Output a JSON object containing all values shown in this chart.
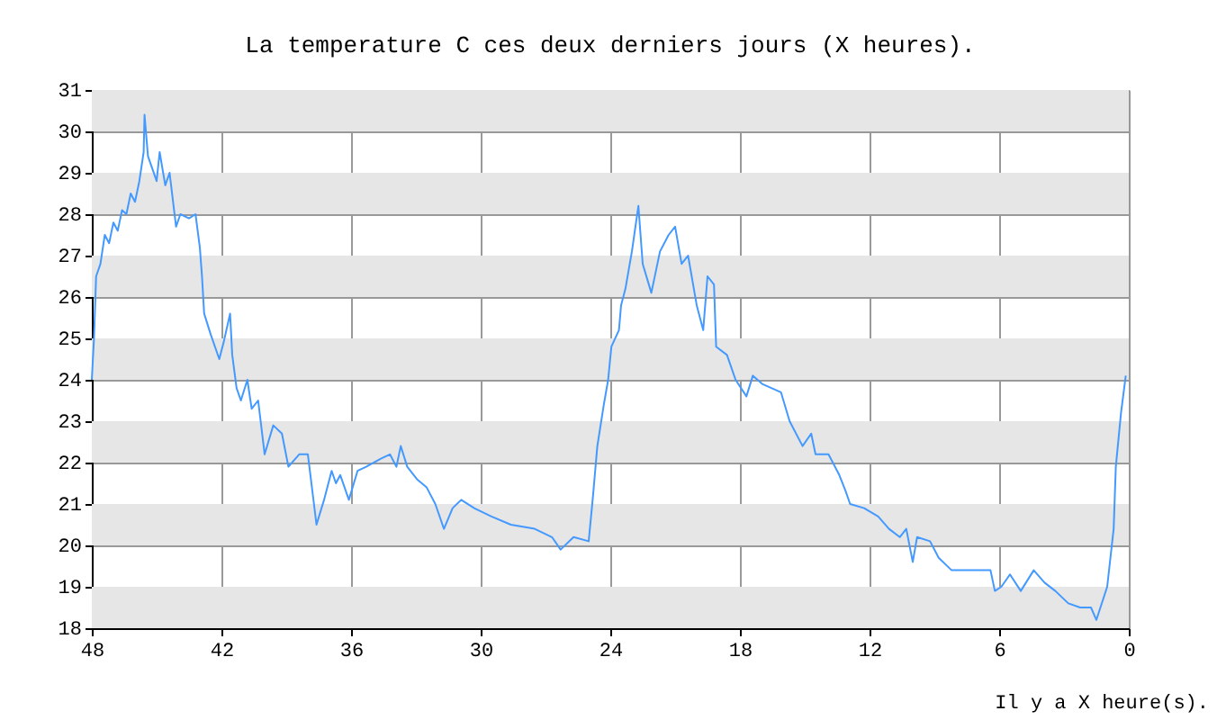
{
  "chart_data": {
    "type": "line",
    "title": "La temperature C ces deux derniers jours (X heures).",
    "xlabel": "Il y a X heure(s).",
    "xlim": [
      48,
      0
    ],
    "xticks": [
      48,
      42,
      36,
      30,
      24,
      18,
      12,
      6,
      0
    ],
    "ylim": [
      18,
      31
    ],
    "yticks": [
      18,
      19,
      20,
      21,
      22,
      23,
      24,
      25,
      26,
      27,
      28,
      29,
      30,
      31
    ],
    "grid": true,
    "marker": "none",
    "line_style": "solid",
    "bands": [
      {
        "axis": "y",
        "from": 18,
        "to": 19,
        "color": "#e6e6e6"
      },
      {
        "axis": "y",
        "from": 20,
        "to": 21,
        "color": "#e6e6e6"
      },
      {
        "axis": "y",
        "from": 22,
        "to": 23,
        "color": "#e6e6e6"
      },
      {
        "axis": "y",
        "from": 24,
        "to": 25,
        "color": "#e6e6e6"
      },
      {
        "axis": "y",
        "from": 26,
        "to": 27,
        "color": "#e6e6e6"
      },
      {
        "axis": "y",
        "from": 28,
        "to": 29,
        "color": "#e6e6e6"
      },
      {
        "axis": "y",
        "from": 30,
        "to": 31,
        "color": "#e6e6e6"
      }
    ],
    "series": [
      {
        "color": "#4499ff",
        "x": [
          48.0,
          47.9,
          47.8,
          47.6,
          47.4,
          47.2,
          47.0,
          46.8,
          46.6,
          46.4,
          46.2,
          46.0,
          45.8,
          45.6,
          45.56,
          45.4,
          45.2,
          45.0,
          44.86,
          44.6,
          44.4,
          44.1,
          43.9,
          43.5,
          43.2,
          43.0,
          42.9,
          42.8,
          42.5,
          42.1,
          41.9,
          41.6,
          41.5,
          41.3,
          41.1,
          40.8,
          40.6,
          40.3,
          40.0,
          39.6,
          39.2,
          38.9,
          38.4,
          38.0,
          37.6,
          37.25,
          36.9,
          36.7,
          36.5,
          36.1,
          35.7,
          35.3,
          34.6,
          34.2,
          33.9,
          33.7,
          33.4,
          32.95,
          32.5,
          32.1,
          31.7,
          31.3,
          30.9,
          30.3,
          29.5,
          28.6,
          27.5,
          26.7,
          26.3,
          25.7,
          25.0,
          24.8,
          24.6,
          24.3,
          24.1,
          23.95,
          23.6,
          23.5,
          23.3,
          23.0,
          22.7,
          22.5,
          22.1,
          21.7,
          21.3,
          21.0,
          20.7,
          20.4,
          20.0,
          19.7,
          19.5,
          19.2,
          19.1,
          18.6,
          18.2,
          17.7,
          17.4,
          16.97,
          16.1,
          15.7,
          15.1,
          14.7,
          14.5,
          13.9,
          13.4,
          13.1,
          12.9,
          12.25,
          11.6,
          11.1,
          10.6,
          10.3,
          10.0,
          9.8,
          9.2,
          8.8,
          8.2,
          7.5,
          6.8,
          6.4,
          6.2,
          5.9,
          5.5,
          5.0,
          4.4,
          3.9,
          3.4,
          2.8,
          2.25,
          1.75,
          1.5,
          1.0,
          0.7,
          0.6,
          0.36,
          0.14
        ],
        "values": [
          24.0,
          25.0,
          26.5,
          26.8,
          27.5,
          27.3,
          27.8,
          27.6,
          28.1,
          28.0,
          28.5,
          28.3,
          28.8,
          29.5,
          30.4,
          29.4,
          29.1,
          28.8,
          29.5,
          28.7,
          29.0,
          27.7,
          28.0,
          27.9,
          28.0,
          27.2,
          26.5,
          25.6,
          25.1,
          24.5,
          24.9,
          25.6,
          24.6,
          23.8,
          23.5,
          24.0,
          23.3,
          23.5,
          22.2,
          22.9,
          22.7,
          21.9,
          22.2,
          22.2,
          20.5,
          21.1,
          21.8,
          21.5,
          21.7,
          21.1,
          21.8,
          21.9,
          22.1,
          22.2,
          21.9,
          22.4,
          21.9,
          21.6,
          21.4,
          21.0,
          20.4,
          20.9,
          21.1,
          20.9,
          20.7,
          20.5,
          20.4,
          20.2,
          19.9,
          20.2,
          20.1,
          21.2,
          22.4,
          23.4,
          24.0,
          24.8,
          25.2,
          25.8,
          26.2,
          27.1,
          28.2,
          26.8,
          26.1,
          27.1,
          27.5,
          27.7,
          26.8,
          27.0,
          25.8,
          25.2,
          26.5,
          26.3,
          24.8,
          24.6,
          24.0,
          23.6,
          24.1,
          23.9,
          23.7,
          23.0,
          22.4,
          22.7,
          22.2,
          22.2,
          21.7,
          21.3,
          21.0,
          20.9,
          20.7,
          20.4,
          20.2,
          20.4,
          19.6,
          20.2,
          20.1,
          19.7,
          19.4,
          19.4,
          19.4,
          19.4,
          18.9,
          19.0,
          19.3,
          18.9,
          19.4,
          19.1,
          18.9,
          18.6,
          18.5,
          18.5,
          18.2,
          19.0,
          20.4,
          21.9,
          23.2,
          24.1
        ]
      }
    ]
  }
}
